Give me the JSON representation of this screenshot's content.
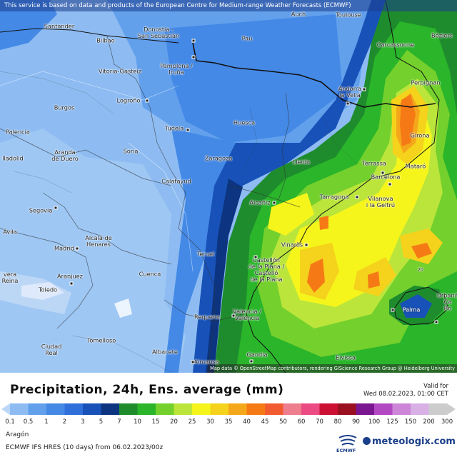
{
  "notice": "This service is based on data and products of the European Centre for Medium-range Weather Forecasts (ECMWF)",
  "attribution": "Map data © OpenStreetMap contributors, rendering GIScience Research Group @ Heidelberg University",
  "cities": [
    {
      "id": "auch",
      "name": "Auch"
    },
    {
      "id": "toulouse",
      "name": "Toulouse"
    },
    {
      "id": "santander",
      "name": "Santander"
    },
    {
      "id": "donostia",
      "name": "Donostia -\nSan Sebastián"
    },
    {
      "id": "bilbao",
      "name": "Bilbao"
    },
    {
      "id": "pau",
      "name": "Pau"
    },
    {
      "id": "beziers",
      "name": "Béziers"
    },
    {
      "id": "carcassonne",
      "name": "Carcassonne"
    },
    {
      "id": "vitoria",
      "name": "Vitoria-Gasteiz"
    },
    {
      "id": "pamplona",
      "name": "Pamplona /\nIruña"
    },
    {
      "id": "perpignan",
      "name": "Perpignan"
    },
    {
      "id": "andorra",
      "name": "Andorra\nla Vella"
    },
    {
      "id": "burgos",
      "name": "Burgos"
    },
    {
      "id": "logrono",
      "name": "Logroño"
    },
    {
      "id": "palencia",
      "name": "Palencia"
    },
    {
      "id": "tudela",
      "name": "Tudela"
    },
    {
      "id": "huesca",
      "name": "Huesca"
    },
    {
      "id": "girona",
      "name": "Girona"
    },
    {
      "id": "valladolid",
      "name": "lladolid"
    },
    {
      "id": "aranda",
      "name": "Aranda\nde Duero"
    },
    {
      "id": "soria",
      "name": "Soria"
    },
    {
      "id": "zaragoza",
      "name": "Zaragoza"
    },
    {
      "id": "lleida",
      "name": "Lleida"
    },
    {
      "id": "terrassa",
      "name": "Terrassa"
    },
    {
      "id": "mataro",
      "name": "Mataró"
    },
    {
      "id": "barcelona",
      "name": "Barcelona"
    },
    {
      "id": "calatayud",
      "name": "Calatayud"
    },
    {
      "id": "tarragona",
      "name": "Tarragona"
    },
    {
      "id": "vilanova",
      "name": "Vilanova\ni la Geltrú"
    },
    {
      "id": "segovia",
      "name": "Segovia"
    },
    {
      "id": "alcaniz",
      "name": "Alcañiz"
    },
    {
      "id": "avila",
      "name": "Ávila"
    },
    {
      "id": "alcala",
      "name": "Alcalá de\nHenares"
    },
    {
      "id": "madrid",
      "name": "Madrid"
    },
    {
      "id": "vinaros",
      "name": "Vinaròs"
    },
    {
      "id": "teruel",
      "name": "Teruel"
    },
    {
      "id": "talavera",
      "name": "vera\nReina"
    },
    {
      "id": "aranjuez",
      "name": "Aranjuez"
    },
    {
      "id": "cuenca",
      "name": "Cuenca"
    },
    {
      "id": "castellon",
      "name": "Castellón\nde la Plana /\nCastelló\nde la Plana"
    },
    {
      "id": "toledo",
      "name": "Toledo"
    },
    {
      "id": "urbanit",
      "name": "Urbanit\nCa\nBo"
    },
    {
      "id": "palma",
      "name": "Palma"
    },
    {
      "id": "requena",
      "name": "Requena"
    },
    {
      "id": "valencia",
      "name": "Valencia /\nValència"
    },
    {
      "id": "ciudadreal",
      "name": "Ciudad\nReal"
    },
    {
      "id": "tomelloso",
      "name": "Tomelloso"
    },
    {
      "id": "albacete",
      "name": "Albacete"
    },
    {
      "id": "almansa",
      "name": "Almansa"
    },
    {
      "id": "gandia",
      "name": "Gandia"
    },
    {
      "id": "eivissa",
      "name": "Eivissa"
    },
    {
      "id": "twenty",
      "name": "20"
    }
  ],
  "legend": {
    "title": "Precipitation, 24h, Ens. average (mm)",
    "valid_label": "Valid for",
    "valid_time": "Wed 08.02.2023, 01:00 CET",
    "ticks": [
      "0.1",
      "0.5",
      "1",
      "2",
      "3",
      "5",
      "7",
      "10",
      "15",
      "20",
      "25",
      "30",
      "35",
      "40",
      "45",
      "50",
      "60",
      "70",
      "80",
      "90",
      "100",
      "125",
      "150",
      "200",
      "300"
    ],
    "colors": [
      "#bcd7f6",
      "#8ebcf2",
      "#62a0ec",
      "#4489e6",
      "#2f6fd9",
      "#1852b8",
      "#0c3480",
      "#1e8c2d",
      "#2ab52a",
      "#74d02c",
      "#bbe53b",
      "#f5f51c",
      "#f5d21b",
      "#f5a71b",
      "#f57a16",
      "#f25a30",
      "#ee7d8d",
      "#ec4a82",
      "#cc1033",
      "#9a1020",
      "#7a1690",
      "#b349c2",
      "#cd86d7",
      "#d9b0e6",
      "#cccccc"
    ]
  },
  "region": "Aragón",
  "model_run": "ECMWF IFS HRES (10 days) from 06.02.2023/00z",
  "logos": {
    "ecmwf": "ECMWF",
    "meteologix": "meteologix.com"
  }
}
